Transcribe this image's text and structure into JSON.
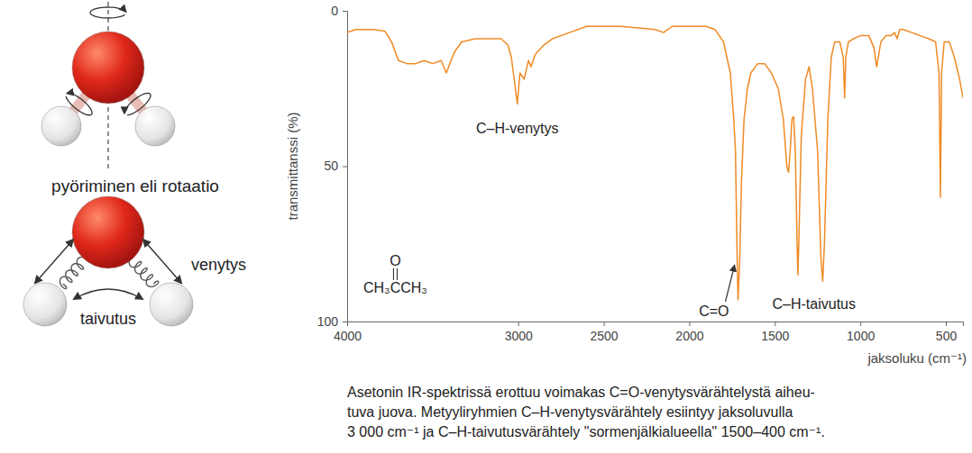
{
  "chart_data": {
    "type": "line",
    "x": [
      4000,
      3950,
      3850,
      3780,
      3740,
      3700,
      3650,
      3600,
      3550,
      3500,
      3450,
      3420,
      3400,
      3370,
      3330,
      3250,
      3150,
      3100,
      3060,
      3040,
      3005,
      2990,
      2965,
      2940,
      2925,
      2900,
      2850,
      2800,
      2700,
      2600,
      2500,
      2400,
      2300,
      2200,
      2150,
      2100,
      2000,
      1900,
      1850,
      1800,
      1760,
      1740,
      1730,
      1720,
      1715,
      1705,
      1695,
      1680,
      1660,
      1640,
      1600,
      1560,
      1520,
      1480,
      1450,
      1430,
      1420,
      1410,
      1400,
      1390,
      1380,
      1370,
      1365,
      1360,
      1345,
      1320,
      1300,
      1280,
      1250,
      1230,
      1220,
      1210,
      1190,
      1170,
      1150,
      1120,
      1100,
      1092,
      1085,
      1070,
      1040,
      1000,
      950,
      920,
      905,
      895,
      880,
      850,
      820,
      800,
      785,
      770,
      750,
      700,
      650,
      600,
      560,
      540,
      532,
      525,
      510,
      480,
      450,
      420,
      400
    ],
    "values": [
      7,
      6,
      6,
      6.5,
      10,
      16,
      17,
      17,
      16,
      17,
      16,
      20,
      17,
      13,
      10,
      9,
      9,
      9,
      11,
      15,
      30,
      20,
      22,
      16,
      18,
      14,
      11,
      9,
      7,
      5,
      5,
      5,
      5.5,
      6,
      7,
      5,
      5,
      5,
      6,
      10,
      20,
      35,
      45,
      80,
      93,
      80,
      55,
      35,
      25,
      20,
      17,
      17,
      20,
      25,
      35,
      50,
      52,
      45,
      35,
      34,
      45,
      75,
      85,
      75,
      40,
      22,
      18,
      25,
      45,
      80,
      87,
      75,
      35,
      15,
      10,
      10,
      15,
      28,
      15,
      10,
      9,
      8,
      8,
      12,
      18,
      15,
      10,
      8,
      8,
      7,
      9,
      6,
      6,
      7,
      8,
      9,
      10,
      20,
      60,
      20,
      10,
      10,
      15,
      22,
      28
    ],
    "color": "#f08a24",
    "xlim": [
      4000,
      400
    ],
    "xticks": [
      4000,
      3000,
      2500,
      2000,
      1500,
      1000,
      500
    ],
    "ylim": [
      0,
      100
    ],
    "yticks": [
      0,
      50,
      100
    ],
    "grid": false,
    "xlabel": "jaksoluku (cm⁻¹)",
    "ylabel": "transmittanssi (%)",
    "annotations": [
      "C–H-venytys",
      "C=O",
      "C–H-taivutus"
    ],
    "molecule": {
      "oxygen": "O",
      "formula": "CH₃CCH₃"
    }
  },
  "diagram": {
    "rotation_label": "pyöriminen eli rotaatio",
    "stretch_label": "venytys",
    "bend_label": "taivutus"
  },
  "caption": [
    "Asetonin IR-spektrissä erottuu voimakas C=O-venytysvärähtelystä aiheu-",
    "tuva juova. Metyyliryhmien C–H-venytysvärähtely esiintyy jaksoluvulla",
    "3 000 cm⁻¹ ja C–H-taivutusvärähtely \"sormenjälkialueella\" 1500–400 cm⁻¹."
  ]
}
